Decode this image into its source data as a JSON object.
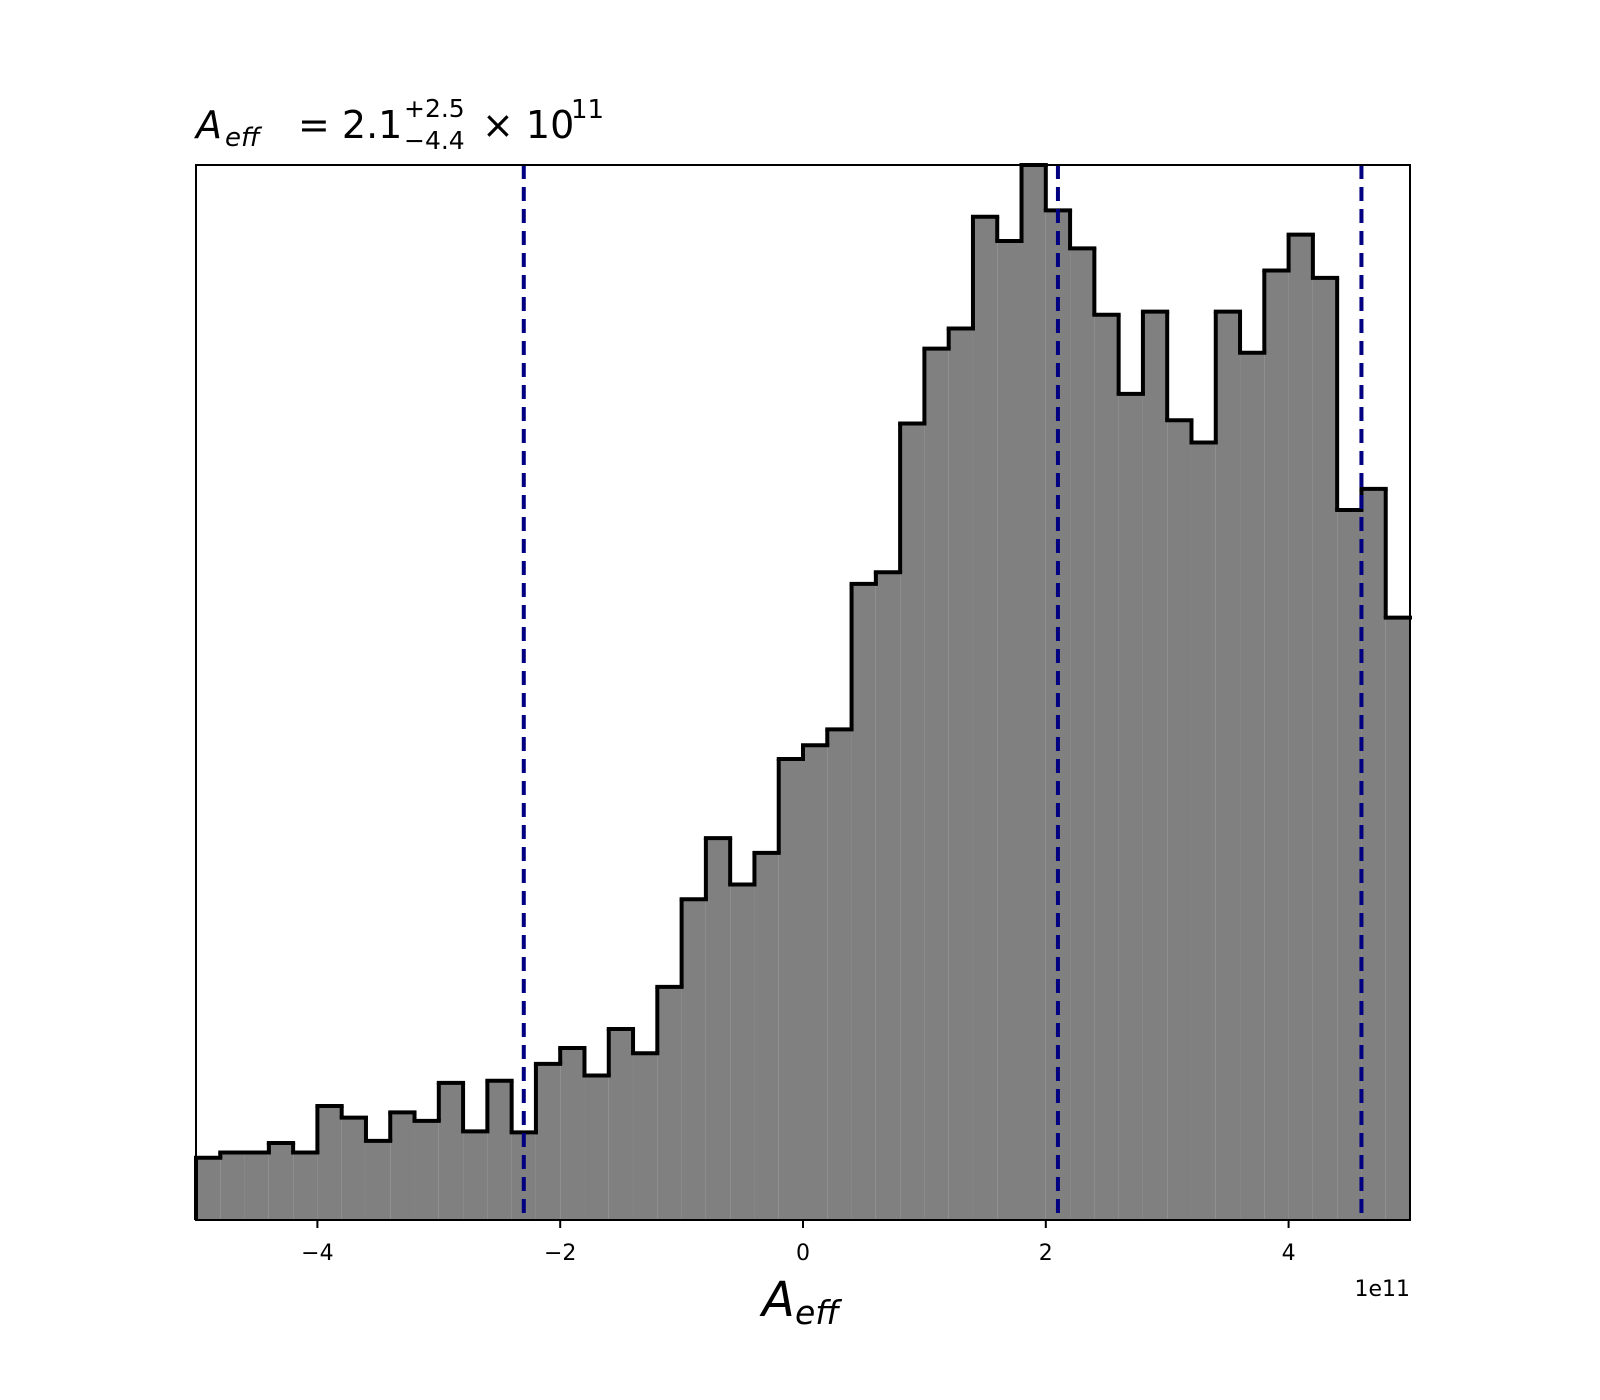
{
  "chart_data": {
    "type": "histogram",
    "title": {
      "symbol": "A",
      "subscript": "eff",
      "value": "= 2.1",
      "upper": "+2.5",
      "lower": "−4.4",
      "times": "× 10",
      "exponent": "11"
    },
    "x_label": {
      "symbol": "A",
      "subscript": "eff"
    },
    "x_offset_label": "1e11",
    "bins": [
      -5,
      -4.8,
      -4.6,
      -4.4,
      -4.2,
      -4,
      -3.8,
      -3.6,
      -3.4,
      -3.2,
      -3,
      -2.8,
      -2.6,
      -2.4,
      -2.2,
      -2,
      -1.8,
      -1.6,
      -1.4,
      -1.2,
      -1,
      -0.8,
      -0.6,
      -0.4,
      -0.2,
      0,
      0.2,
      0.4,
      0.6,
      0.8,
      1,
      1.2,
      1.4,
      1.6,
      1.8,
      2,
      2.2,
      2.4,
      2.6,
      2.8,
      3,
      3.2,
      3.4,
      3.6,
      3.8,
      4,
      4.2,
      4.4,
      4.6,
      4.8,
      5
    ],
    "values": [
      5.9,
      6.4,
      6.4,
      7.3,
      6.4,
      10.8,
      9.7,
      7.5,
      10.2,
      9.4,
      13.0,
      8.4,
      13.2,
      8.3,
      14.8,
      16.3,
      13.7,
      18.1,
      15.8,
      22.1,
      30.4,
      36.2,
      31.8,
      34.8,
      43.7,
      45.0,
      46.5,
      60.3,
      61.4,
      75.5,
      82.6,
      84.5,
      95.1,
      92.8,
      100,
      95.7,
      92.1,
      85.8,
      78.3,
      86.1,
      75.8,
      73.7,
      86.1,
      82.2,
      90.0,
      93.4,
      89.3,
      67.3,
      69.3,
      57.1
    ],
    "color": "#808080",
    "edge_color": "#000000",
    "vlines": [
      -2.3,
      2.1,
      4.6
    ],
    "vline_color": "#000080",
    "xlim": [
      -5,
      5
    ],
    "ylim": [
      0,
      100
    ],
    "xticks": [
      {
        "value": -4,
        "label": "−4"
      },
      {
        "value": -2,
        "label": "−2"
      },
      0,
      2,
      4
    ]
  }
}
